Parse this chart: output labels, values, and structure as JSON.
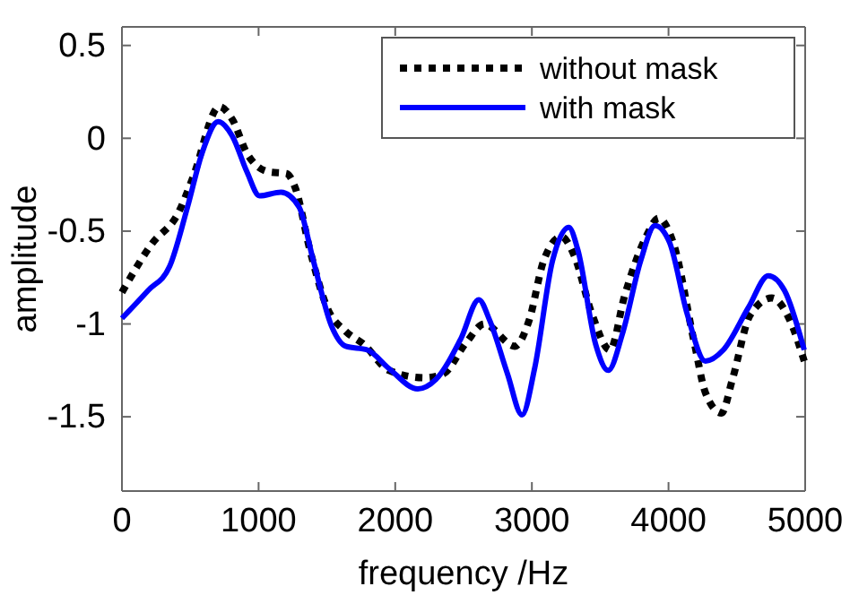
{
  "chart_data": {
    "type": "line",
    "xlabel": "frequency /Hz",
    "ylabel": "amplitude",
    "xlim": [
      0,
      5000
    ],
    "ylim": [
      -1.9,
      0.6
    ],
    "xticks": [
      0,
      1000,
      2000,
      3000,
      4000,
      5000
    ],
    "yticks": [
      -1.5,
      -1,
      -0.5,
      0,
      0.5
    ],
    "grid": false,
    "legend": "top right",
    "marker": "none",
    "series": [
      {
        "name": "without mask",
        "color": "#000000",
        "line_style": "dotted",
        "x": [
          0,
          217,
          414,
          520,
          713,
          809,
          914,
          1072,
          1204,
          1270,
          1375,
          1506,
          1638,
          1770,
          1954,
          2217,
          2349,
          2520,
          2651,
          2875,
          2980,
          3086,
          3217,
          3309,
          3441,
          3572,
          3678,
          3836,
          3928,
          4033,
          4191,
          4270,
          4388,
          4467,
          4599,
          4757,
          4888,
          4993
        ],
        "values": [
          -0.83,
          -0.57,
          -0.4,
          -0.21,
          0.17,
          0.1,
          -0.08,
          -0.18,
          -0.19,
          -0.27,
          -0.6,
          -0.92,
          -1.04,
          -1.11,
          -1.25,
          -1.29,
          -1.27,
          -1.1,
          -1.0,
          -1.12,
          -0.98,
          -0.66,
          -0.53,
          -0.63,
          -0.95,
          -1.14,
          -0.85,
          -0.53,
          -0.43,
          -0.56,
          -1.11,
          -1.37,
          -1.48,
          -1.3,
          -0.95,
          -0.86,
          -0.98,
          -1.2
        ]
      },
      {
        "name": "with mask",
        "color": "#0000ff",
        "line_style": "solid",
        "x": [
          0,
          191,
          349,
          480,
          586,
          704,
          809,
          914,
          1007,
          1164,
          1296,
          1401,
          1533,
          1638,
          1796,
          1954,
          2165,
          2296,
          2480,
          2612,
          2691,
          2822,
          2928,
          3020,
          3151,
          3270,
          3336,
          3467,
          3559,
          3664,
          3796,
          3901,
          4007,
          4138,
          4270,
          4401,
          4586,
          4730,
          4849,
          4993
        ],
        "values": [
          -0.97,
          -0.82,
          -0.69,
          -0.37,
          -0.08,
          0.09,
          0.01,
          -0.18,
          -0.31,
          -0.29,
          -0.37,
          -0.66,
          -1.01,
          -1.12,
          -1.14,
          -1.24,
          -1.35,
          -1.3,
          -1.08,
          -0.87,
          -0.98,
          -1.27,
          -1.49,
          -1.24,
          -0.66,
          -0.48,
          -0.6,
          -1.11,
          -1.25,
          -1.05,
          -0.66,
          -0.47,
          -0.56,
          -0.95,
          -1.2,
          -1.14,
          -0.91,
          -0.74,
          -0.82,
          -1.14
        ]
      }
    ]
  }
}
